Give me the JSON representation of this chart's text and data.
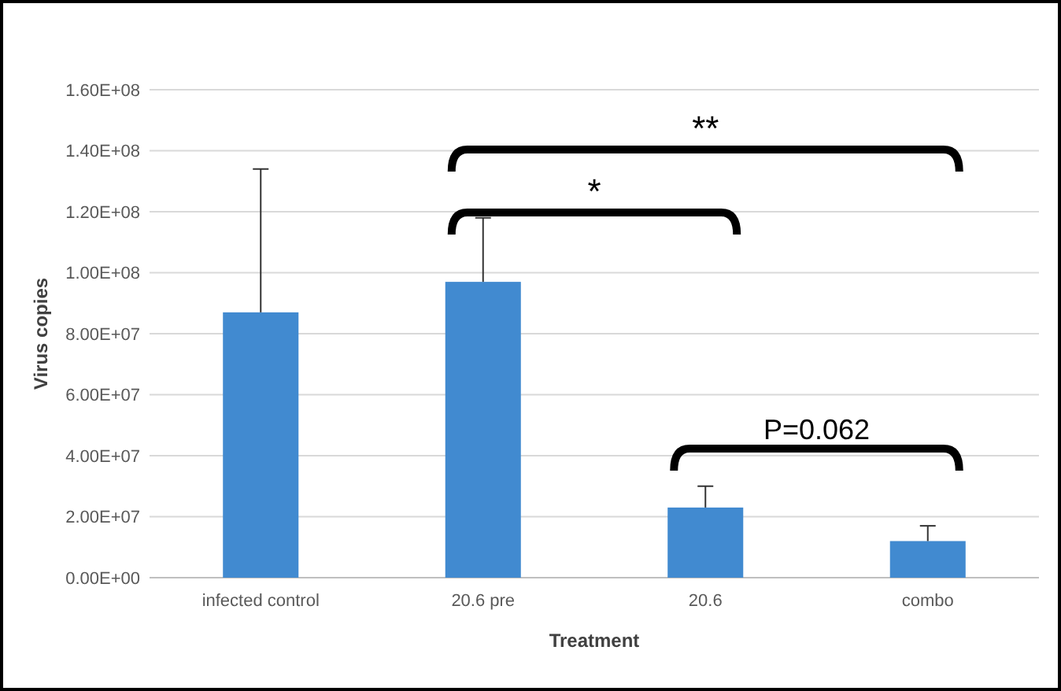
{
  "chart_data": {
    "type": "bar",
    "xlabel": "Treatment",
    "ylabel": "Virus copies",
    "categories": [
      "infected control",
      "20.6 pre",
      "20.6",
      "combo"
    ],
    "values": [
      87000000.0,
      97000000.0,
      23000000.0,
      12000000.0
    ],
    "errors": [
      [
        87000000.0,
        134000000.0
      ],
      [
        97000000.0,
        118000000.0
      ],
      [
        23000000.0,
        30000000.0
      ],
      [
        12000000.0,
        17000000.0
      ]
    ],
    "color": "#418ad0",
    "ylim": [
      0,
      160000000.0
    ],
    "yticks": [
      {
        "value": 0,
        "label": "0.00E+00"
      },
      {
        "value": 20000000.0,
        "label": "2.00E+07"
      },
      {
        "value": 40000000.0,
        "label": "4.00E+07"
      },
      {
        "value": 60000000.0,
        "label": "6.00E+07"
      },
      {
        "value": 80000000.0,
        "label": "8.00E+07"
      },
      {
        "value": 100000000.0,
        "label": "1.00E+08"
      },
      {
        "value": 120000000.0,
        "label": "1.20E+08"
      },
      {
        "value": 140000000.0,
        "label": "1.40E+08"
      },
      {
        "value": 160000000.0,
        "label": "1.60E+08"
      }
    ],
    "grid": "y",
    "annotations": [
      "**",
      "*",
      "P=0.062"
    ]
  }
}
